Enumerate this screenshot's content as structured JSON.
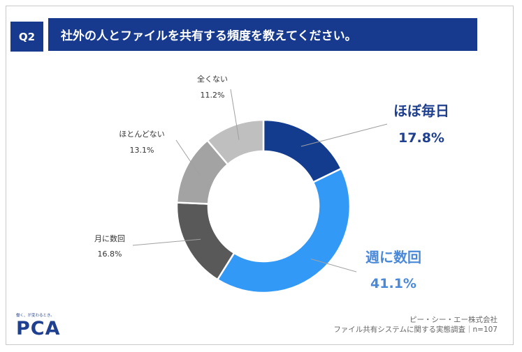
{
  "header": {
    "question_badge": "Q2",
    "question_text": "社外の人とファイルを共有する頻度を教えてください。"
  },
  "colors": {
    "header_bg": "#173a8f",
    "slices": [
      "#133c8e",
      "#3399f7",
      "#595959",
      "#7f7f7f",
      "#a3a3a3",
      "#bfbfbf"
    ],
    "highlight_label_1": "#1f3f8f",
    "highlight_label_2": "#4a88d8",
    "muted_label": "#333333"
  },
  "chart_data": {
    "type": "pie",
    "variant": "donut",
    "title": "社外の人とファイルを共有する頻度を教えてください。",
    "categories": [
      "ほぼ毎日",
      "週に数回",
      "月に数回",
      "ほとんどない",
      "全くない"
    ],
    "values": [
      17.8,
      41.1,
      16.8,
      13.1,
      11.2
    ],
    "value_labels": [
      "17.8%",
      "41.1%",
      "16.8%",
      "13.1%",
      "11.2%"
    ],
    "unit": "%",
    "start": "12 o'clock, clockwise"
  },
  "footer": {
    "company": "ピー・シー・エー株式会社",
    "survey": "ファイル共有システムに関する実態調査｜n=107"
  },
  "logo": {
    "tagline": "働く、が変わるとき。",
    "name": "PCA"
  }
}
